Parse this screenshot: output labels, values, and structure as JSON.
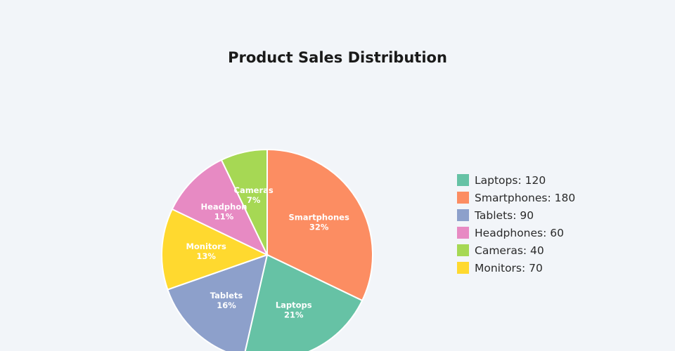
{
  "chart_data": {
    "type": "pie",
    "title": "Product Sales Distribution",
    "categories": [
      "Smartphones",
      "Laptops",
      "Tablets",
      "Monitors",
      "Headphones",
      "Cameras"
    ],
    "values": [
      180,
      120,
      90,
      70,
      60,
      40
    ],
    "slice_labels": [
      {
        "name": "Smartphones",
        "percent": "32%"
      },
      {
        "name": "Laptops",
        "percent": "21%"
      },
      {
        "name": "Tablets",
        "percent": "16%"
      },
      {
        "name": "Monitors",
        "percent": "13%"
      },
      {
        "name": "Headphon",
        "percent": "11%"
      },
      {
        "name": "Cameras",
        "percent": "7%"
      }
    ],
    "colors": [
      "#fc8d62",
      "#66c2a5",
      "#8da0cb",
      "#ffd92f",
      "#e78ac3",
      "#a6d854"
    ],
    "legend": [
      {
        "text": "Laptops: 120",
        "color": "#66c2a5"
      },
      {
        "text": "Smartphones: 180",
        "color": "#fc8d62"
      },
      {
        "text": "Tablets: 90",
        "color": "#8da0cb"
      },
      {
        "text": "Headphones: 60",
        "color": "#e78ac3"
      },
      {
        "text": "Cameras: 40",
        "color": "#a6d854"
      },
      {
        "text": "Monitors: 70",
        "color": "#ffd92f"
      }
    ],
    "legend_position": "right",
    "start_angle": "12 o'clock",
    "direction": "clockwise"
  }
}
